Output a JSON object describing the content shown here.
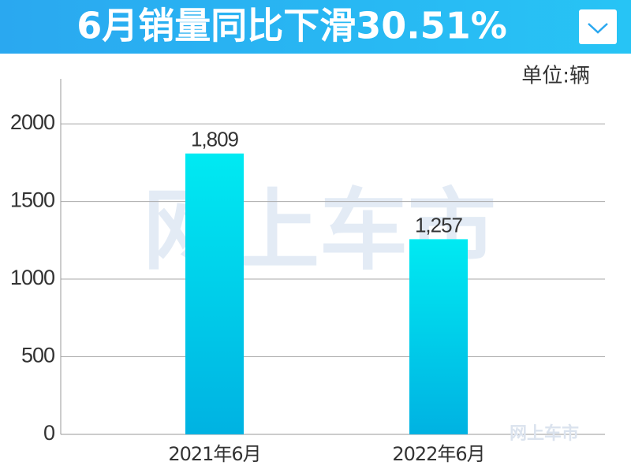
{
  "chart_data": {
    "type": "bar",
    "title": "6月销量同比下滑30.51%",
    "unit": "单位:辆",
    "watermark": "网上车市",
    "categories": [
      "2021年6月",
      "2022年6月"
    ],
    "values": [
      1809,
      1257
    ],
    "value_labels": [
      "1,809",
      "1,257"
    ],
    "color": [
      "#00eaf2",
      "#00b2e2"
    ],
    "ylim": [
      0,
      2300
    ],
    "yticks": [
      0,
      500,
      1000,
      1500,
      2000
    ],
    "grid": true
  }
}
